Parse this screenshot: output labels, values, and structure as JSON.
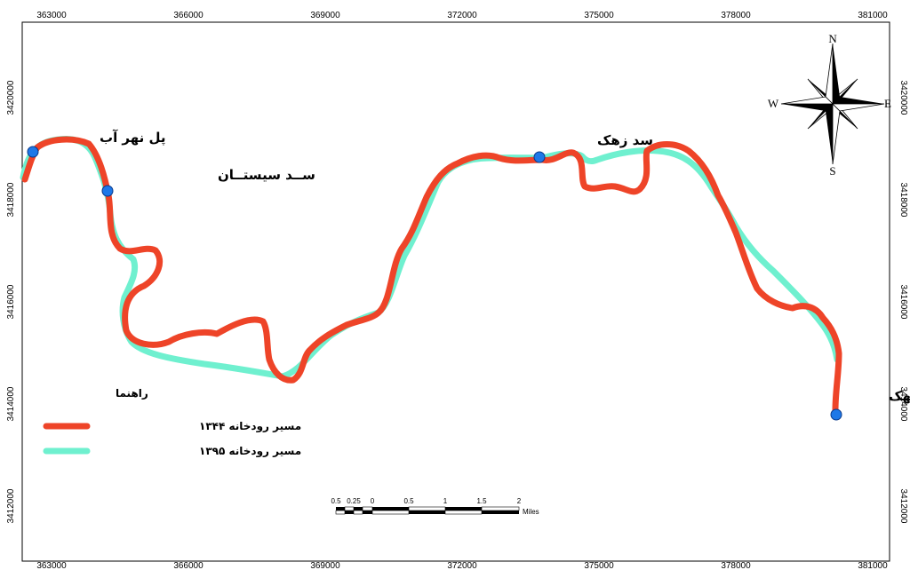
{
  "map": {
    "x_ticks": [
      "363000",
      "366000",
      "369000",
      "372000",
      "375000",
      "378000",
      "381000"
    ],
    "y_ticks": [
      "3420000",
      "3418000",
      "3416000",
      "3414000",
      "3412000"
    ],
    "places": {
      "pol_nahr_ab": "پل نهر آب",
      "sad_sistan": "ســد سیستــان",
      "sad_zahak": "سد زهک",
      "pol_kahak": "پل کهک"
    },
    "compass": {
      "n": "N",
      "s": "S",
      "e": "E",
      "w": "W"
    },
    "legend": {
      "title": "راهنما",
      "item_1344": "مسیر رودخانه ۱۳۴۴",
      "item_1395": "مسیر رودخانه ۱۳۹۵"
    },
    "scale_bar": {
      "labels": [
        "0.5",
        "0.25",
        "0",
        "0.5",
        "1",
        "1.5",
        "2"
      ],
      "unit": "Miles"
    },
    "colors": {
      "river_1344": "#ee4428",
      "river_1395": "#6ff0cf",
      "point_fill": "#1e78e8"
    }
  }
}
